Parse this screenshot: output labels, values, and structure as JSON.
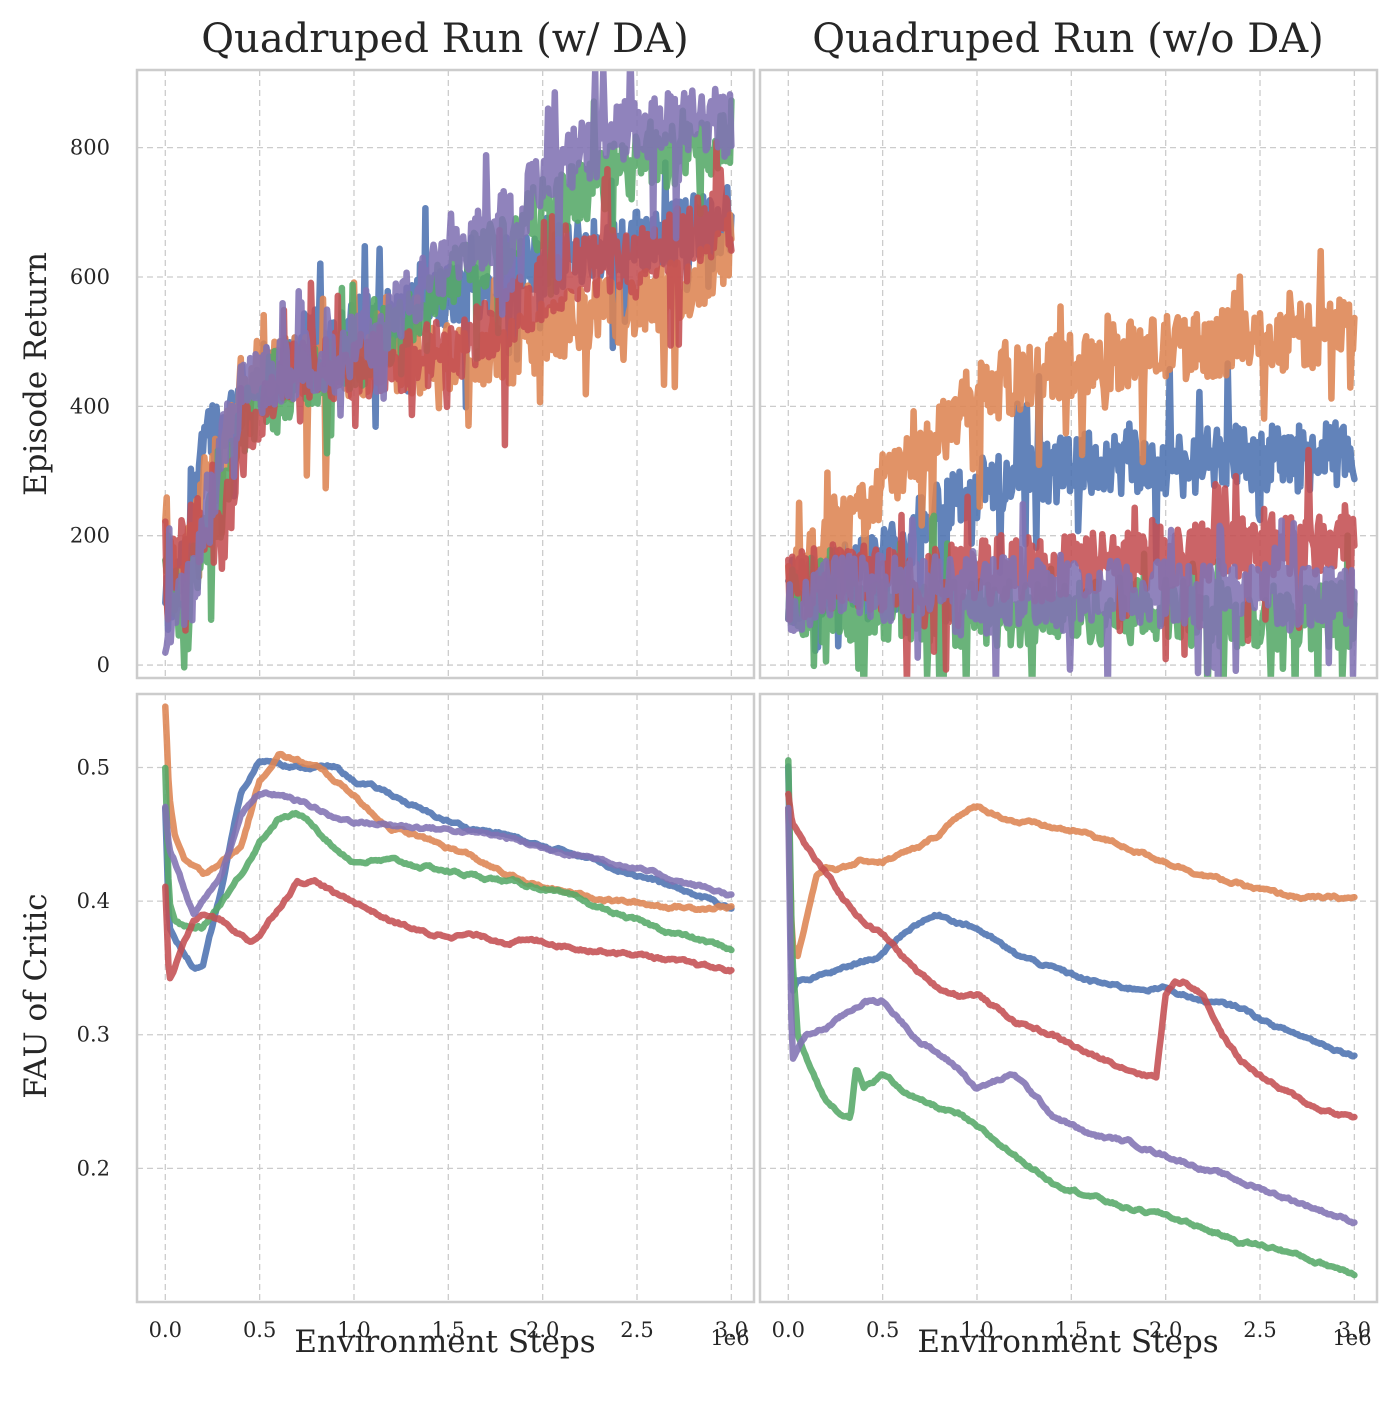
{
  "chart_data": [
    {
      "type": "line",
      "title": "Quadruped Run (w/ DA)",
      "xlabel": "",
      "ylabel": "Episode Return",
      "x_offset_label": "",
      "xlim": [
        -0.15,
        3.12
      ],
      "ylim": [
        -20,
        920
      ],
      "xticks": [
        "",
        "",
        "",
        "",
        "",
        "",
        ""
      ],
      "yticks": [
        "0",
        "200",
        "400",
        "600",
        "800"
      ],
      "grid": true,
      "noise": true,
      "series": [
        {
          "color": "#4c72b0",
          "x": [
            0,
            0.05,
            0.1,
            0.15,
            0.2,
            0.25,
            0.3,
            0.35,
            0.4,
            0.45,
            0.5,
            0.6,
            0.7,
            0.8,
            0.9,
            1.0,
            1.2,
            1.4,
            1.6,
            1.8,
            2.0,
            2.2,
            2.4,
            2.6,
            2.8,
            3.0
          ],
          "y": [
            80,
            110,
            150,
            210,
            380,
            370,
            360,
            390,
            410,
            430,
            450,
            450,
            480,
            500,
            510,
            520,
            530,
            560,
            580,
            600,
            620,
            640,
            650,
            660,
            680,
            690
          ]
        },
        {
          "color": "#dd8452",
          "x": [
            0,
            0.05,
            0.1,
            0.15,
            0.2,
            0.25,
            0.3,
            0.35,
            0.4,
            0.45,
            0.5,
            0.6,
            0.7,
            0.8,
            1.0,
            1.2,
            1.4,
            1.6,
            1.8,
            1.9,
            2.0,
            2.2,
            2.4,
            2.6,
            2.8,
            3.0
          ],
          "y": [
            230,
            120,
            140,
            200,
            260,
            290,
            320,
            360,
            400,
            440,
            460,
            460,
            460,
            460,
            465,
            470,
            470,
            480,
            485,
            490,
            510,
            540,
            550,
            560,
            590,
            650
          ]
        },
        {
          "color": "#55a868",
          "x": [
            0,
            0.05,
            0.1,
            0.15,
            0.2,
            0.25,
            0.3,
            0.35,
            0.4,
            0.45,
            0.5,
            0.6,
            0.7,
            0.8,
            1.0,
            1.2,
            1.4,
            1.6,
            1.8,
            2.0,
            2.2,
            2.4,
            2.6,
            2.8,
            3.0
          ],
          "y": [
            180,
            100,
            90,
            140,
            200,
            220,
            250,
            330,
            370,
            380,
            400,
            420,
            440,
            450,
            470,
            510,
            560,
            610,
            650,
            700,
            730,
            760,
            780,
            800,
            810
          ]
        },
        {
          "color": "#c44e52",
          "x": [
            0,
            0.05,
            0.1,
            0.15,
            0.2,
            0.25,
            0.3,
            0.35,
            0.4,
            0.45,
            0.5,
            0.6,
            0.7,
            0.8,
            1.0,
            1.2,
            1.4,
            1.6,
            1.8,
            2.0,
            2.2,
            2.4,
            2.6,
            2.8,
            3.0
          ],
          "y": [
            110,
            150,
            170,
            220,
            200,
            180,
            200,
            260,
            330,
            380,
            400,
            440,
            460,
            460,
            465,
            470,
            480,
            500,
            540,
            580,
            610,
            630,
            650,
            670,
            690
          ]
        },
        {
          "color": "#8172b3",
          "x": [
            0,
            0.05,
            0.1,
            0.15,
            0.2,
            0.25,
            0.3,
            0.35,
            0.4,
            0.45,
            0.5,
            0.6,
            0.7,
            0.8,
            1.0,
            1.2,
            1.4,
            1.6,
            1.8,
            2.0,
            2.2,
            2.4,
            2.6,
            2.8,
            3.0
          ],
          "y": [
            70,
            90,
            100,
            120,
            200,
            260,
            330,
            380,
            410,
            430,
            440,
            450,
            460,
            470,
            490,
            540,
            590,
            640,
            690,
            740,
            790,
            820,
            830,
            840,
            840
          ]
        }
      ]
    },
    {
      "type": "line",
      "title": "Quadruped Run (w/o DA)",
      "xlabel": "",
      "ylabel": "",
      "x_offset_label": "",
      "xlim": [
        -0.15,
        3.12
      ],
      "ylim": [
        -20,
        920
      ],
      "xticks": [
        "",
        "",
        "",
        "",
        "",
        "",
        ""
      ],
      "yticks": [
        "",
        "",
        "",
        "",
        ""
      ],
      "grid": true,
      "noise": true,
      "series": [
        {
          "color": "#4c72b0",
          "x": [
            0,
            0.2,
            0.4,
            0.6,
            0.7,
            0.8,
            1.0,
            1.2,
            1.4,
            1.6,
            1.8,
            2.0,
            2.2,
            2.4,
            2.6,
            2.8,
            3.0
          ],
          "y": [
            110,
            130,
            150,
            180,
            220,
            250,
            270,
            290,
            300,
            310,
            310,
            310,
            315,
            320,
            320,
            320,
            330
          ]
        },
        {
          "color": "#dd8452",
          "x": [
            0,
            0.1,
            0.2,
            0.3,
            0.4,
            0.5,
            0.6,
            0.7,
            0.8,
            0.9,
            1.0,
            1.2,
            1.4,
            1.6,
            1.8,
            2.0,
            2.2,
            2.4,
            2.6,
            2.8,
            3.0
          ],
          "y": [
            120,
            150,
            180,
            210,
            240,
            280,
            300,
            320,
            350,
            390,
            420,
            440,
            460,
            470,
            480,
            490,
            495,
            500,
            505,
            510,
            530
          ]
        },
        {
          "color": "#55a868",
          "x": [
            0,
            0.3,
            0.6,
            0.9,
            1.2,
            1.5,
            1.8,
            2.1,
            2.4,
            2.7,
            3.0
          ],
          "y": [
            100,
            90,
            85,
            80,
            80,
            80,
            85,
            80,
            75,
            75,
            80
          ]
        },
        {
          "color": "#c44e52",
          "x": [
            0,
            0.3,
            0.6,
            0.9,
            1.2,
            1.5,
            1.8,
            2.0,
            2.2,
            2.4,
            2.6,
            2.8,
            3.0
          ],
          "y": [
            120,
            140,
            130,
            140,
            150,
            150,
            160,
            170,
            180,
            185,
            185,
            190,
            200
          ]
        },
        {
          "color": "#8172b3",
          "x": [
            0,
            0.3,
            0.6,
            0.9,
            1.2,
            1.5,
            1.8,
            2.1,
            2.4,
            2.7,
            3.0
          ],
          "y": [
            100,
            120,
            120,
            120,
            115,
            110,
            110,
            110,
            110,
            110,
            115
          ]
        }
      ]
    },
    {
      "type": "line",
      "title": "",
      "xlabel": "Environment Steps",
      "ylabel": "FAU of Critic",
      "x_offset_label": "1e6",
      "xlim": [
        -0.15,
        3.12
      ],
      "ylim": [
        0.1,
        0.555
      ],
      "xticks": [
        "0.0",
        "0.5",
        "1.0",
        "1.5",
        "2.0",
        "2.5",
        "3.0"
      ],
      "yticks": [
        "0.2",
        "0.3",
        "0.4",
        "0.5"
      ],
      "grid": true,
      "noise": false,
      "series": [
        {
          "color": "#4c72b0",
          "x": [
            0,
            0.02,
            0.05,
            0.1,
            0.15,
            0.2,
            0.3,
            0.4,
            0.5,
            0.6,
            0.7,
            0.8,
            0.9,
            1.0,
            1.2,
            1.4,
            1.6,
            1.8,
            2.0,
            2.2,
            2.4,
            2.6,
            2.8,
            3.0
          ],
          "y": [
            0.47,
            0.38,
            0.37,
            0.36,
            0.35,
            0.35,
            0.41,
            0.48,
            0.505,
            0.505,
            0.5,
            0.5,
            0.5,
            0.49,
            0.48,
            0.465,
            0.455,
            0.45,
            0.44,
            0.435,
            0.425,
            0.415,
            0.405,
            0.395
          ]
        },
        {
          "color": "#dd8452",
          "x": [
            0,
            0.02,
            0.05,
            0.1,
            0.2,
            0.3,
            0.4,
            0.5,
            0.6,
            0.7,
            0.8,
            0.9,
            1.0,
            1.1,
            1.2,
            1.4,
            1.6,
            1.8,
            2.0,
            2.2,
            2.4,
            2.6,
            2.8,
            3.0
          ],
          "y": [
            0.545,
            0.48,
            0.45,
            0.43,
            0.42,
            0.43,
            0.44,
            0.49,
            0.51,
            0.505,
            0.5,
            0.49,
            0.48,
            0.465,
            0.455,
            0.445,
            0.435,
            0.42,
            0.41,
            0.405,
            0.4,
            0.397,
            0.395,
            0.396
          ]
        },
        {
          "color": "#55a868",
          "x": [
            0,
            0.02,
            0.05,
            0.1,
            0.2,
            0.3,
            0.4,
            0.5,
            0.6,
            0.7,
            0.8,
            0.9,
            1.0,
            1.2,
            1.4,
            1.6,
            1.8,
            2.0,
            2.2,
            2.4,
            2.6,
            2.8,
            3.0
          ],
          "y": [
            0.5,
            0.4,
            0.385,
            0.38,
            0.38,
            0.4,
            0.42,
            0.445,
            0.462,
            0.465,
            0.455,
            0.44,
            0.43,
            0.43,
            0.425,
            0.42,
            0.415,
            0.41,
            0.4,
            0.39,
            0.38,
            0.372,
            0.364
          ]
        },
        {
          "color": "#c44e52",
          "x": [
            0,
            0.02,
            0.05,
            0.1,
            0.15,
            0.2,
            0.3,
            0.4,
            0.45,
            0.5,
            0.6,
            0.7,
            0.8,
            0.9,
            1.0,
            1.2,
            1.4,
            1.6,
            1.8,
            2.0,
            2.2,
            2.4,
            2.6,
            2.8,
            3.0
          ],
          "y": [
            0.41,
            0.34,
            0.35,
            0.37,
            0.385,
            0.39,
            0.385,
            0.375,
            0.37,
            0.375,
            0.395,
            0.415,
            0.415,
            0.405,
            0.4,
            0.385,
            0.375,
            0.375,
            0.37,
            0.37,
            0.365,
            0.362,
            0.358,
            0.352,
            0.348
          ]
        },
        {
          "color": "#8172b3",
          "x": [
            0,
            0.02,
            0.05,
            0.1,
            0.15,
            0.2,
            0.3,
            0.4,
            0.5,
            0.6,
            0.7,
            0.8,
            0.9,
            1.0,
            1.2,
            1.4,
            1.6,
            1.8,
            2.0,
            2.2,
            2.4,
            2.6,
            2.8,
            3.0
          ],
          "y": [
            0.47,
            0.44,
            0.43,
            0.41,
            0.39,
            0.4,
            0.42,
            0.465,
            0.48,
            0.48,
            0.475,
            0.47,
            0.462,
            0.46,
            0.457,
            0.455,
            0.452,
            0.448,
            0.44,
            0.435,
            0.428,
            0.42,
            0.412,
            0.405
          ]
        }
      ]
    },
    {
      "type": "line",
      "title": "",
      "xlabel": "Environment Steps",
      "ylabel": "",
      "x_offset_label": "1e6",
      "xlim": [
        -0.15,
        3.12
      ],
      "ylim": [
        0.1,
        0.555
      ],
      "xticks": [
        "0.0",
        "0.5",
        "1.0",
        "1.5",
        "2.0",
        "2.5",
        "3.0"
      ],
      "yticks": [
        "",
        "",
        "",
        ""
      ],
      "grid": true,
      "noise": false,
      "series": [
        {
          "color": "#4c72b0",
          "x": [
            0,
            0.02,
            0.05,
            0.1,
            0.2,
            0.3,
            0.4,
            0.5,
            0.6,
            0.7,
            0.8,
            0.9,
            1.0,
            1.2,
            1.4,
            1.6,
            1.8,
            2.0,
            2.2,
            2.4,
            2.6,
            2.8,
            3.0
          ],
          "y": [
            0.5,
            0.33,
            0.34,
            0.34,
            0.345,
            0.35,
            0.355,
            0.36,
            0.375,
            0.385,
            0.39,
            0.385,
            0.38,
            0.36,
            0.35,
            0.34,
            0.335,
            0.335,
            0.325,
            0.32,
            0.305,
            0.295,
            0.285
          ]
        },
        {
          "color": "#dd8452",
          "x": [
            0,
            0.02,
            0.05,
            0.1,
            0.15,
            0.2,
            0.3,
            0.4,
            0.5,
            0.6,
            0.7,
            0.8,
            0.9,
            1.0,
            1.1,
            1.2,
            1.4,
            1.6,
            1.8,
            2.0,
            2.2,
            2.4,
            2.6,
            2.8,
            3.0
          ],
          "y": [
            0.47,
            0.37,
            0.36,
            0.39,
            0.42,
            0.425,
            0.425,
            0.43,
            0.43,
            0.435,
            0.44,
            0.45,
            0.465,
            0.47,
            0.465,
            0.46,
            0.455,
            0.45,
            0.44,
            0.43,
            0.42,
            0.412,
            0.405,
            0.402,
            0.402
          ]
        },
        {
          "color": "#55a868",
          "x": [
            0,
            0.02,
            0.05,
            0.1,
            0.2,
            0.3,
            0.33,
            0.36,
            0.4,
            0.5,
            0.6,
            0.7,
            0.8,
            0.9,
            1.0,
            1.2,
            1.4,
            1.6,
            1.8,
            2.0,
            2.2,
            2.4,
            2.6,
            2.8,
            3.0
          ],
          "y": [
            0.505,
            0.36,
            0.3,
            0.28,
            0.25,
            0.24,
            0.24,
            0.275,
            0.26,
            0.27,
            0.26,
            0.25,
            0.245,
            0.24,
            0.23,
            0.21,
            0.19,
            0.18,
            0.17,
            0.165,
            0.155,
            0.145,
            0.14,
            0.13,
            0.122
          ]
        },
        {
          "color": "#c44e52",
          "x": [
            0,
            0.02,
            0.04,
            0.1,
            0.2,
            0.3,
            0.4,
            0.5,
            0.6,
            0.7,
            0.8,
            0.9,
            1.0,
            1.2,
            1.4,
            1.6,
            1.8,
            1.9,
            1.95,
            2.0,
            2.05,
            2.1,
            2.2,
            2.3,
            2.4,
            2.6,
            2.8,
            3.0
          ],
          "y": [
            0.48,
            0.46,
            0.455,
            0.44,
            0.42,
            0.4,
            0.385,
            0.375,
            0.36,
            0.345,
            0.335,
            0.33,
            0.33,
            0.31,
            0.3,
            0.285,
            0.275,
            0.27,
            0.27,
            0.33,
            0.34,
            0.34,
            0.33,
            0.3,
            0.28,
            0.26,
            0.245,
            0.238
          ]
        },
        {
          "color": "#8172b3",
          "x": [
            0,
            0.02,
            0.05,
            0.1,
            0.2,
            0.3,
            0.4,
            0.5,
            0.6,
            0.7,
            0.8,
            0.9,
            1.0,
            1.1,
            1.2,
            1.3,
            1.4,
            1.6,
            1.8,
            2.0,
            2.2,
            2.4,
            2.6,
            2.8,
            3.0
          ],
          "y": [
            0.47,
            0.28,
            0.29,
            0.3,
            0.305,
            0.315,
            0.325,
            0.325,
            0.31,
            0.295,
            0.285,
            0.275,
            0.26,
            0.265,
            0.27,
            0.255,
            0.24,
            0.225,
            0.22,
            0.21,
            0.2,
            0.19,
            0.18,
            0.17,
            0.16
          ]
        }
      ]
    }
  ]
}
